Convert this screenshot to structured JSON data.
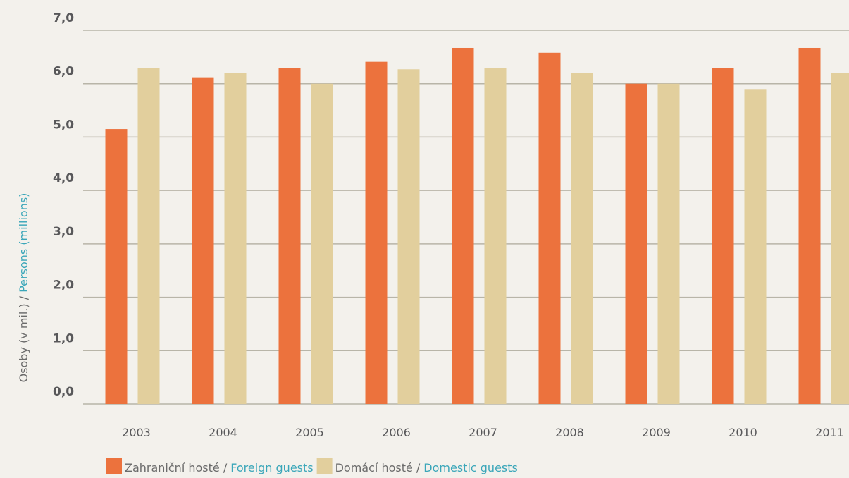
{
  "chart_data": {
    "type": "bar",
    "y_label": {
      "cs": "Osoby (v mil.) /",
      "en": "Persons (millions)"
    },
    "categories": [
      "2003",
      "2004",
      "2005",
      "2006",
      "2007",
      "2008",
      "2009",
      "2010",
      "2011"
    ],
    "series": [
      {
        "name": {
          "cs": "Zahraniční hosté /",
          "en": "Foreign guests"
        },
        "color": "#ec723d",
        "values": [
          5.15,
          6.12,
          6.29,
          6.41,
          6.67,
          6.58,
          6.0,
          6.29,
          6.67
        ]
      },
      {
        "name": {
          "cs": "Domácí hosté /",
          "en": "Domestic guests"
        },
        "color": "#e2cf9d",
        "values": [
          6.29,
          6.2,
          6.0,
          6.27,
          6.29,
          6.2,
          6.0,
          5.9,
          6.2
        ]
      }
    ],
    "ylim": [
      0,
      7
    ],
    "yticks": [
      {
        "value": 0,
        "label": "0,0"
      },
      {
        "value": 1,
        "label": "1,0"
      },
      {
        "value": 2,
        "label": "2,0"
      },
      {
        "value": 3,
        "label": "3,0"
      },
      {
        "value": 4,
        "label": "4,0"
      },
      {
        "value": 5,
        "label": "5,0"
      },
      {
        "value": 6,
        "label": "6,0"
      },
      {
        "value": 7,
        "label": "7,0"
      }
    ],
    "grid": true
  }
}
